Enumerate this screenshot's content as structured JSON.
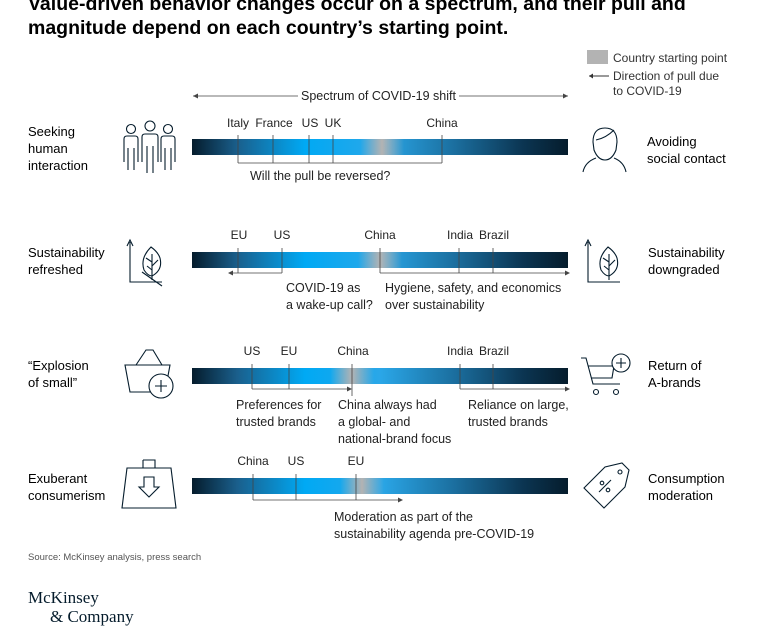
{
  "title_line1": "Value-driven behavior changes occur on a spectrum, and their pull and",
  "title_line2": "magnitude depend on each country’s starting point.",
  "legend": {
    "starting_point": "Country starting point",
    "pull_line1": "Direction of pull due",
    "pull_line2": "to COVID-19",
    "starting_point_color": "#b3b3b3"
  },
  "spectrum_title": "Spectrum of COVID-19 shift",
  "rows": [
    {
      "left_label": [
        "Seeking",
        "human",
        "interaction"
      ],
      "right_label": [
        "Avoiding",
        "social contact"
      ],
      "left_icon": "people-group-icon",
      "right_icon": "person-isolated-icon",
      "countries": [
        {
          "name": "Italy",
          "pos": 0.12
        },
        {
          "name": "France",
          "pos": 0.22
        },
        {
          "name": "US",
          "pos": 0.31
        },
        {
          "name": "UK",
          "pos": 0.37
        },
        {
          "name": "China",
          "pos": 0.66
        }
      ],
      "notes": [
        [
          "Will the pull be reversed?"
        ]
      ]
    },
    {
      "left_label": [
        "Sustainability",
        "refreshed"
      ],
      "right_label": [
        "Sustainability",
        "downgraded"
      ],
      "left_icon": "leaf-growth-icon",
      "right_icon": "leaf-decline-icon",
      "countries": [
        {
          "name": "EU",
          "pos": 0.12
        },
        {
          "name": "US",
          "pos": 0.24
        },
        {
          "name": "China",
          "pos": 0.5
        },
        {
          "name": "India",
          "pos": 0.71
        },
        {
          "name": "Brazil",
          "pos": 0.8
        }
      ],
      "notes": [
        [
          "COVID-19 as",
          "a wake-up call?"
        ],
        [
          "Hygiene, safety, and economics",
          "over sustainability"
        ]
      ]
    },
    {
      "left_label": [
        "“Explosion",
        "of small”"
      ],
      "right_label": [
        "Return of",
        "A-brands"
      ],
      "left_icon": "basket-add-icon",
      "right_icon": "cart-add-icon",
      "countries": [
        {
          "name": "US",
          "pos": 0.16
        },
        {
          "name": "EU",
          "pos": 0.26
        },
        {
          "name": "China",
          "pos": 0.43
        },
        {
          "name": "India",
          "pos": 0.71
        },
        {
          "name": "Brazil",
          "pos": 0.8
        }
      ],
      "notes": [
        [
          "Preferences for",
          "trusted brands"
        ],
        [
          "China always had",
          "a global- and",
          "national-brand focus"
        ],
        [
          "Reliance on large,",
          "trusted brands"
        ]
      ]
    },
    {
      "left_label": [
        "Exuberant",
        "consumerism"
      ],
      "right_label": [
        "Consumption",
        "moderation"
      ],
      "left_icon": "shopping-bag-download-icon",
      "right_icon": "discount-tag-icon",
      "countries": [
        {
          "name": "China",
          "pos": 0.16
        },
        {
          "name": "US",
          "pos": 0.28
        },
        {
          "name": "EU",
          "pos": 0.44
        }
      ],
      "notes": [
        [
          "Moderation as part of the",
          "sustainability agenda pre-COVID-19"
        ]
      ]
    }
  ],
  "source": "Source: McKinsey analysis, press search",
  "logo_line1": "McKinsey",
  "logo_line2": "& Company"
}
